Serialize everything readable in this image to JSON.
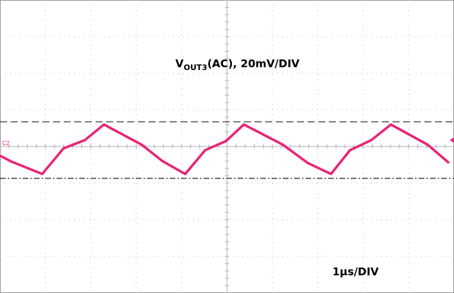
{
  "chart_data": {
    "type": "line",
    "annotation": {
      "symbol": "V",
      "subscript": "OUT3",
      "text": "(AC), 20mV/DIV"
    },
    "time_label": "1µs/DIV",
    "channel_label": "C2",
    "xlim": [
      0,
      10
    ],
    "ylim": [
      -80,
      80
    ],
    "x": [
      0,
      0.23,
      0.93,
      1.4,
      1.87,
      2.29,
      3.12,
      3.58,
      4.08,
      4.52,
      4.98,
      5.37,
      6.23,
      6.78,
      7.29,
      7.71,
      8.18,
      8.61,
      9.42,
      9.89
    ],
    "series": [
      {
        "color": "#e8247a",
        "values": [
          -5,
          -8,
          -15,
          -1,
          3.5,
          12,
          1,
          -8,
          -15,
          -2,
          3,
          12,
          1,
          -9,
          -15,
          -2,
          3.5,
          12,
          1,
          -9
        ]
      }
    ],
    "reference_lines": [
      {
        "value": 13.5,
        "style": "dashed"
      },
      {
        "value": -17.4,
        "style": "dashdot"
      }
    ]
  }
}
